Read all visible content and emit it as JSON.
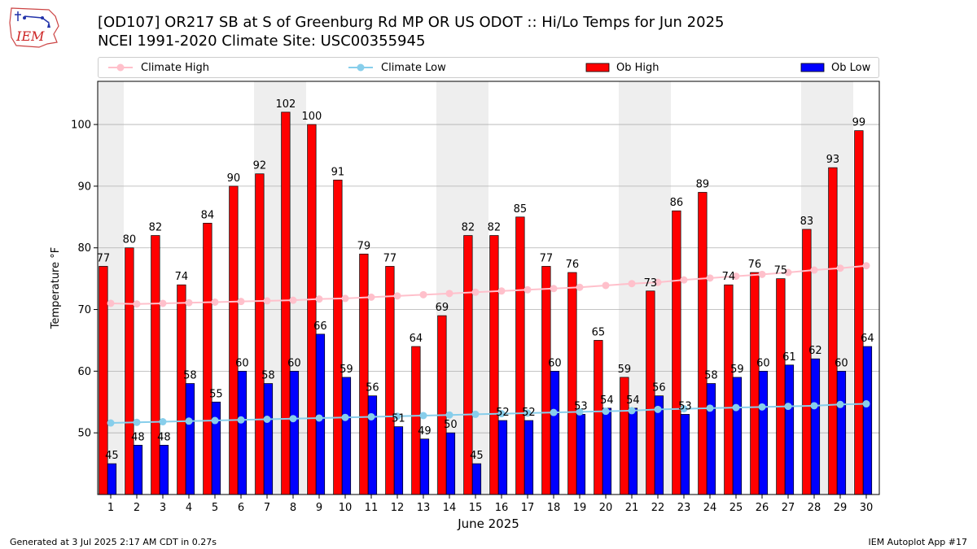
{
  "header": {
    "title_line1": "[OD107] OR217 SB at S of Greenburg Rd MP OR US ODOT :: Hi/Lo Temps for Jun 2025",
    "title_line2": "NCEI 1991-2020 Climate Site: USC00355945",
    "logo_text": "IEM"
  },
  "footer": {
    "left": "Generated at 3 Jul 2025 2:17 AM CDT in 0.27s",
    "right": "IEM Autoplot App #17"
  },
  "colors": {
    "ob_high": "#ff0000",
    "ob_low": "#0000ff",
    "climate_high": "#ffc0cb",
    "climate_low": "#87ceeb",
    "weekend_band": "#eeeeee",
    "grid": "#b0b0b0"
  },
  "legend": {
    "climate_high": "Climate High",
    "climate_low": "Climate Low",
    "ob_high": "Ob High",
    "ob_low": "Ob Low"
  },
  "chart_data": {
    "type": "bar",
    "xlabel": "June 2025",
    "ylabel": "Temperature °F",
    "ylim": [
      40,
      107
    ],
    "yticks": [
      50,
      60,
      70,
      80,
      90,
      100
    ],
    "grid": "horizontal",
    "legend_position": "top",
    "categories": [
      "1",
      "2",
      "3",
      "4",
      "5",
      "6",
      "7",
      "8",
      "9",
      "10",
      "11",
      "12",
      "13",
      "14",
      "15",
      "16",
      "17",
      "18",
      "19",
      "20",
      "21",
      "22",
      "23",
      "24",
      "25",
      "26",
      "27",
      "28",
      "29",
      "30"
    ],
    "weekend_days": [
      [
        1,
        1
      ],
      [
        7,
        8
      ],
      [
        14,
        15
      ],
      [
        21,
        22
      ],
      [
        28,
        29
      ]
    ],
    "series": [
      {
        "name": "Ob High",
        "kind": "bar",
        "values": [
          77,
          80,
          82,
          74,
          84,
          90,
          92,
          102,
          100,
          91,
          79,
          77,
          64,
          69,
          82,
          82,
          85,
          77,
          76,
          65,
          59,
          73,
          86,
          89,
          74,
          76,
          75,
          83,
          93,
          99
        ]
      },
      {
        "name": "Ob Low",
        "kind": "bar",
        "values": [
          45,
          48,
          48,
          58,
          55,
          60,
          58,
          60,
          66,
          59,
          56,
          51,
          49,
          50,
          45,
          52,
          52,
          60,
          53,
          54,
          54,
          56,
          53,
          58,
          59,
          60,
          61,
          62,
          60,
          64
        ]
      },
      {
        "name": "Climate High",
        "kind": "line",
        "values": [
          71.0,
          70.9,
          71.0,
          71.1,
          71.2,
          71.3,
          71.4,
          71.5,
          71.7,
          71.8,
          72.0,
          72.2,
          72.4,
          72.6,
          72.8,
          73.0,
          73.2,
          73.4,
          73.6,
          73.9,
          74.2,
          74.4,
          74.8,
          75.1,
          75.4,
          75.7,
          76.0,
          76.4,
          76.7,
          77.1
        ]
      },
      {
        "name": "Climate Low",
        "kind": "line",
        "values": [
          51.6,
          51.7,
          51.8,
          51.9,
          52.0,
          52.1,
          52.2,
          52.3,
          52.4,
          52.5,
          52.6,
          52.7,
          52.8,
          52.9,
          53.0,
          53.1,
          53.2,
          53.3,
          53.4,
          53.5,
          53.6,
          53.8,
          53.9,
          54.0,
          54.1,
          54.2,
          54.3,
          54.4,
          54.6,
          54.7
        ]
      }
    ]
  }
}
